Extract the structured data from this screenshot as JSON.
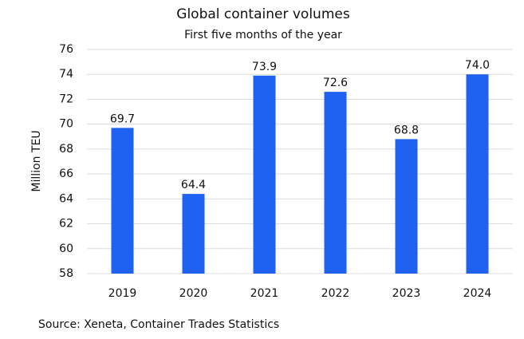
{
  "chart_data": {
    "type": "bar",
    "title": "Global container volumes",
    "subtitle": "First five months of the year",
    "y_label": "Million TEU",
    "source": "Source: Xeneta, Container Trades Statistics",
    "categories": [
      "2019",
      "2020",
      "2021",
      "2022",
      "2023",
      "2024"
    ],
    "values": [
      69.7,
      64.4,
      73.9,
      72.6,
      68.8,
      74
    ],
    "value_labels": [
      "69.7",
      "64.4",
      "73.9",
      "72.6",
      "68.8",
      "74.0"
    ],
    "color": "#1f62f2",
    "ylim": [
      58,
      76
    ],
    "yticks": [
      58,
      60,
      62,
      64,
      66,
      68,
      70,
      72,
      74,
      76
    ],
    "grid": true
  }
}
